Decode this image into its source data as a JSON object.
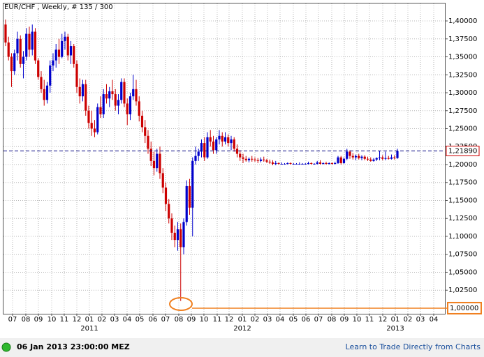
{
  "chart_data": {
    "type": "candlestick",
    "title": "EUR/CHF , Weekly, # 135 / 300",
    "up_color": "#0000cc",
    "down_color": "#cc0000",
    "grid": true,
    "xlim": [
      -0.7,
      148
    ],
    "ylim": [
      0.9922,
      1.4243
    ],
    "xticks": [
      {
        "value": 2.35,
        "label": "07"
      },
      {
        "value": 6.82,
        "label": "08"
      },
      {
        "value": 11.06,
        "label": "09"
      },
      {
        "value": 15.53,
        "label": "10"
      },
      {
        "value": 19.76,
        "label": "11"
      },
      {
        "value": 24,
        "label": "12"
      },
      {
        "value": 28.24,
        "label": "01"
      },
      {
        "value": 32.47,
        "label": "02"
      },
      {
        "value": 36.71,
        "label": "03"
      },
      {
        "value": 40.94,
        "label": "04"
      },
      {
        "value": 45.18,
        "label": "05"
      },
      {
        "value": 49.65,
        "label": "06"
      },
      {
        "value": 53.88,
        "label": "07"
      },
      {
        "value": 58.35,
        "label": "08"
      },
      {
        "value": 62.59,
        "label": "09"
      },
      {
        "value": 66.82,
        "label": "10"
      },
      {
        "value": 71.29,
        "label": "11"
      },
      {
        "value": 75.29,
        "label": "12"
      },
      {
        "value": 79.76,
        "label": "01"
      },
      {
        "value": 84,
        "label": "02"
      },
      {
        "value": 88.24,
        "label": "03"
      },
      {
        "value": 92.47,
        "label": "04"
      },
      {
        "value": 96.94,
        "label": "05"
      },
      {
        "value": 101.18,
        "label": "06"
      },
      {
        "value": 105.41,
        "label": "07"
      },
      {
        "value": 109.88,
        "label": "08"
      },
      {
        "value": 114.12,
        "label": "09"
      },
      {
        "value": 118.35,
        "label": "10"
      },
      {
        "value": 122.59,
        "label": "11"
      },
      {
        "value": 127.06,
        "label": "12"
      },
      {
        "value": 131.29,
        "label": "01"
      },
      {
        "value": 135.53,
        "label": "02"
      },
      {
        "value": 139.76,
        "label": "03"
      },
      {
        "value": 144.24,
        "label": "04"
      }
    ],
    "year_labels": [
      {
        "value": 28.24,
        "label": "2011"
      },
      {
        "value": 79.76,
        "label": "2012"
      },
      {
        "value": 131.29,
        "label": "2013"
      }
    ],
    "yticks": [
      {
        "value": 1.025,
        "label": "1,02500"
      },
      {
        "value": 1.05,
        "label": "1,05000"
      },
      {
        "value": 1.075,
        "label": "1,07500"
      },
      {
        "value": 1.1,
        "label": "1,10000"
      },
      {
        "value": 1.125,
        "label": "1,12500"
      },
      {
        "value": 1.15,
        "label": "1,15000"
      },
      {
        "value": 1.175,
        "label": "1,17500"
      },
      {
        "value": 1.2,
        "label": "1,20000"
      },
      {
        "value": 1.225,
        "label": "1,22500"
      },
      {
        "value": 1.25,
        "label": "1,25000"
      },
      {
        "value": 1.275,
        "label": "1,27500"
      },
      {
        "value": 1.3,
        "label": "1,30000"
      },
      {
        "value": 1.325,
        "label": "1,32500"
      },
      {
        "value": 1.35,
        "label": "1,35000"
      },
      {
        "value": 1.375,
        "label": "1,37500"
      },
      {
        "value": 1.4,
        "label": "1,40000"
      }
    ],
    "last_price": {
      "value": 1.2189,
      "label": "1,21890",
      "color": "#000080"
    },
    "support": {
      "value": 1.0,
      "label": "1,00000",
      "color": "#f08020"
    },
    "open": [
      1.395,
      1.37,
      1.35,
      1.33,
      1.355,
      1.375,
      1.34,
      1.35,
      1.382,
      1.36,
      1.385,
      1.345,
      1.322,
      1.305,
      1.29,
      1.31,
      1.338,
      1.345,
      1.36,
      1.35,
      1.372,
      1.378,
      1.352,
      1.365,
      1.34,
      1.308,
      1.295,
      1.312,
      1.275,
      1.258,
      1.25,
      1.245,
      1.28,
      1.27,
      1.298,
      1.292,
      1.302,
      1.298,
      1.282,
      1.29,
      1.315,
      1.285,
      1.27,
      1.295,
      1.305,
      1.288,
      1.268,
      1.252,
      1.24,
      1.222,
      1.205,
      1.195,
      1.215,
      1.188,
      1.168,
      1.145,
      1.125,
      1.105,
      1.095,
      1.11,
      1.085,
      1.12,
      1.17,
      1.14,
      1.205,
      1.212,
      1.218,
      1.23,
      1.21,
      1.238,
      1.232,
      1.22,
      1.235,
      1.24,
      1.232,
      1.238,
      1.23,
      1.235,
      1.222,
      1.215,
      1.21,
      1.208,
      1.206,
      1.208,
      1.207,
      1.206,
      1.205,
      1.207,
      1.206,
      1.204,
      1.203,
      1.201,
      1.202,
      1.201,
      1.201,
      1.201,
      1.202,
      1.201,
      1.201,
      1.201,
      1.201,
      1.201,
      1.201,
      1.202,
      1.201,
      1.201,
      1.203,
      1.201,
      1.202,
      1.201,
      1.202,
      1.201,
      1.202,
      1.21,
      1.202,
      1.208,
      1.218,
      1.212,
      1.21,
      1.212,
      1.209,
      1.211,
      1.208,
      1.207,
      1.205,
      1.207,
      1.209,
      1.21,
      1.208,
      1.209,
      1.208,
      1.21,
      1.209
    ],
    "high": [
      1.402,
      1.378,
      1.355,
      1.36,
      1.385,
      1.38,
      1.358,
      1.39,
      1.392,
      1.395,
      1.39,
      1.348,
      1.33,
      1.318,
      1.315,
      1.345,
      1.355,
      1.368,
      1.375,
      1.382,
      1.385,
      1.382,
      1.372,
      1.368,
      1.345,
      1.32,
      1.318,
      1.318,
      1.282,
      1.275,
      1.262,
      1.285,
      1.295,
      1.305,
      1.312,
      1.308,
      1.318,
      1.305,
      1.298,
      1.32,
      1.32,
      1.292,
      1.3,
      1.325,
      1.318,
      1.295,
      1.275,
      1.262,
      1.248,
      1.232,
      1.218,
      1.222,
      1.225,
      1.195,
      1.175,
      1.152,
      1.132,
      1.115,
      1.12,
      1.118,
      1.125,
      1.178,
      1.18,
      1.21,
      1.225,
      1.222,
      1.235,
      1.238,
      1.245,
      1.248,
      1.24,
      1.238,
      1.248,
      1.245,
      1.245,
      1.242,
      1.24,
      1.238,
      1.228,
      1.22,
      1.215,
      1.212,
      1.21,
      1.212,
      1.21,
      1.209,
      1.21,
      1.211,
      1.208,
      1.207,
      1.206,
      1.205,
      1.203,
      1.203,
      1.202,
      1.203,
      1.203,
      1.202,
      1.202,
      1.203,
      1.202,
      1.202,
      1.204,
      1.203,
      1.202,
      1.205,
      1.206,
      1.203,
      1.204,
      1.203,
      1.203,
      1.204,
      1.212,
      1.212,
      1.21,
      1.222,
      1.22,
      1.216,
      1.214,
      1.215,
      1.213,
      1.213,
      1.211,
      1.21,
      1.209,
      1.21,
      1.219,
      1.213,
      1.218,
      1.212,
      1.214,
      1.213,
      1.222
    ],
    "low": [
      1.365,
      1.345,
      1.308,
      1.325,
      1.345,
      1.335,
      1.32,
      1.345,
      1.35,
      1.352,
      1.34,
      1.318,
      1.3,
      1.282,
      1.285,
      1.3,
      1.33,
      1.335,
      1.34,
      1.348,
      1.36,
      1.345,
      1.34,
      1.335,
      1.3,
      1.285,
      1.288,
      1.268,
      1.25,
      1.24,
      1.238,
      1.242,
      1.265,
      1.265,
      1.285,
      1.28,
      1.29,
      1.275,
      1.27,
      1.285,
      1.28,
      1.255,
      1.262,
      1.29,
      1.282,
      1.26,
      1.245,
      1.23,
      1.215,
      1.198,
      1.185,
      1.19,
      1.18,
      1.16,
      1.135,
      1.118,
      1.095,
      1.085,
      1.08,
      1.01,
      1.075,
      1.115,
      1.13,
      1.1,
      1.2,
      1.205,
      1.21,
      1.205,
      1.208,
      1.225,
      1.215,
      1.215,
      1.228,
      1.225,
      1.228,
      1.225,
      1.22,
      1.218,
      1.21,
      1.205,
      1.202,
      1.204,
      1.203,
      1.204,
      1.204,
      1.202,
      1.203,
      1.204,
      1.202,
      1.201,
      1.199,
      1.199,
      1.2,
      1.2,
      1.2,
      1.2,
      1.2,
      1.2,
      1.2,
      1.2,
      1.2,
      1.2,
      1.2,
      1.2,
      1.2,
      1.2,
      1.2,
      1.2,
      1.2,
      1.2,
      1.2,
      1.2,
      1.201,
      1.2,
      1.201,
      1.206,
      1.208,
      1.207,
      1.206,
      1.207,
      1.206,
      1.206,
      1.205,
      1.204,
      1.204,
      1.205,
      1.206,
      1.206,
      1.206,
      1.207,
      1.207,
      1.207,
      1.208
    ],
    "close": [
      1.37,
      1.35,
      1.33,
      1.355,
      1.375,
      1.34,
      1.35,
      1.382,
      1.36,
      1.385,
      1.345,
      1.322,
      1.305,
      1.29,
      1.31,
      1.338,
      1.345,
      1.36,
      1.35,
      1.372,
      1.378,
      1.352,
      1.365,
      1.34,
      1.308,
      1.295,
      1.312,
      1.275,
      1.258,
      1.25,
      1.245,
      1.28,
      1.27,
      1.298,
      1.292,
      1.302,
      1.298,
      1.282,
      1.29,
      1.315,
      1.285,
      1.27,
      1.295,
      1.305,
      1.288,
      1.268,
      1.252,
      1.24,
      1.222,
      1.205,
      1.195,
      1.215,
      1.188,
      1.168,
      1.145,
      1.125,
      1.105,
      1.095,
      1.11,
      1.085,
      1.12,
      1.17,
      1.14,
      1.205,
      1.212,
      1.218,
      1.23,
      1.21,
      1.238,
      1.232,
      1.22,
      1.235,
      1.24,
      1.232,
      1.238,
      1.23,
      1.235,
      1.222,
      1.215,
      1.21,
      1.208,
      1.206,
      1.208,
      1.207,
      1.206,
      1.205,
      1.207,
      1.206,
      1.204,
      1.203,
      1.201,
      1.202,
      1.201,
      1.201,
      1.201,
      1.202,
      1.201,
      1.201,
      1.201,
      1.201,
      1.201,
      1.201,
      1.202,
      1.201,
      1.201,
      1.203,
      1.201,
      1.202,
      1.201,
      1.202,
      1.201,
      1.202,
      1.21,
      1.202,
      1.208,
      1.218,
      1.212,
      1.21,
      1.212,
      1.209,
      1.211,
      1.208,
      1.207,
      1.205,
      1.207,
      1.209,
      1.21,
      1.208,
      1.209,
      1.208,
      1.21,
      1.209,
      1.2189
    ]
  },
  "footer": {
    "timestamp": "06 Jan 2013 23:00:00 MEZ",
    "link": "Learn to Trade Directly from Charts"
  }
}
